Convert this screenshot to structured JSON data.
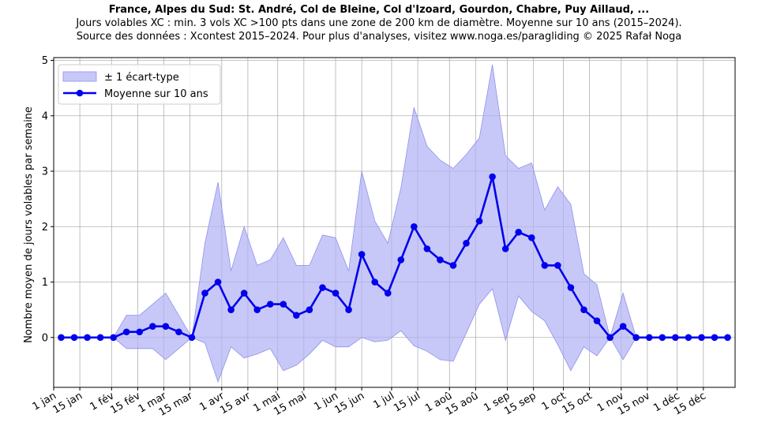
{
  "chart_data": {
    "type": "line",
    "title": "France, Alpes du Sud: St. André, Col de Bleine, Col d'Izoard, Gourdon, Chabre, Puy Aillaud, ...",
    "subtitle_lines": [
      "Jours volables XC : min. 3 vols XC >100 pts dans une zone de 200 km de diamètre. Moyenne sur 10 ans (2015–2024).",
      "Source des données : Xcontest 2015–2024. Pour plus d'analyses, visitez www.noga.es/paragliding © 2025 Rafał Noga"
    ],
    "xlabel": "",
    "ylabel": "Nombre moyen de jours volables par semaine",
    "xlim": [
      1,
      366
    ],
    "ylim": [
      -0.9,
      5.05
    ],
    "grid": true,
    "legend_position": "top-left",
    "x_ticks": [
      {
        "day": 1,
        "label": "1 jan"
      },
      {
        "day": 15,
        "label": "15 jan"
      },
      {
        "day": 32,
        "label": "1 fév"
      },
      {
        "day": 46,
        "label": "15 fév"
      },
      {
        "day": 60,
        "label": "1 mar"
      },
      {
        "day": 74,
        "label": "15 mar"
      },
      {
        "day": 91,
        "label": "1 avr"
      },
      {
        "day": 105,
        "label": "15 avr"
      },
      {
        "day": 121,
        "label": "1 mai"
      },
      {
        "day": 135,
        "label": "15 mai"
      },
      {
        "day": 152,
        "label": "1 jun"
      },
      {
        "day": 166,
        "label": "15 jun"
      },
      {
        "day": 182,
        "label": "1 jul"
      },
      {
        "day": 196,
        "label": "15 jul"
      },
      {
        "day": 213,
        "label": "1 aoû"
      },
      {
        "day": 227,
        "label": "15 aoû"
      },
      {
        "day": 244,
        "label": "1 sep"
      },
      {
        "day": 258,
        "label": "15 sep"
      },
      {
        "day": 274,
        "label": "1 oct"
      },
      {
        "day": 288,
        "label": "15 oct"
      },
      {
        "day": 305,
        "label": "1 nov"
      },
      {
        "day": 319,
        "label": "15 nov"
      },
      {
        "day": 335,
        "label": "1 déc"
      },
      {
        "day": 349,
        "label": "15 déc"
      }
    ],
    "y_ticks": [
      0,
      1,
      2,
      3,
      4,
      5
    ],
    "x": [
      5,
      12,
      19,
      26,
      33,
      40,
      47,
      54,
      61,
      68,
      75,
      82,
      89,
      96,
      103,
      110,
      117,
      124,
      131,
      138,
      145,
      152,
      159,
      166,
      173,
      180,
      187,
      194,
      201,
      208,
      215,
      222,
      229,
      236,
      243,
      250,
      257,
      264,
      271,
      278,
      285,
      292,
      299,
      306,
      313,
      320,
      327,
      334,
      341,
      348,
      355,
      362
    ],
    "series": [
      {
        "name": "Moyenne sur 10 ans",
        "color": "#0000ee",
        "values": [
          0,
          0,
          0,
          0,
          0,
          0.1,
          0.1,
          0.2,
          0.2,
          0.1,
          0,
          0.8,
          1.0,
          0.5,
          0.8,
          0.5,
          0.6,
          0.6,
          0.4,
          0.5,
          0.9,
          0.8,
          0.5,
          1.5,
          1.0,
          0.8,
          1.4,
          2.0,
          1.6,
          1.4,
          1.3,
          1.7,
          2.1,
          2.9,
          1.6,
          1.9,
          1.8,
          1.3,
          1.3,
          0.9,
          0.5,
          0.3,
          0,
          0.2,
          0,
          0,
          0,
          0,
          0,
          0,
          0,
          0
        ]
      },
      {
        "name": "± 1 écart-type",
        "color": "#b0b0f5",
        "upper": [
          0,
          0,
          0,
          0,
          0,
          0.4,
          0.4,
          0.6,
          0.8,
          0.4,
          0,
          1.7,
          2.8,
          1.2,
          2.0,
          1.3,
          1.4,
          1.8,
          1.3,
          1.3,
          1.85,
          1.8,
          1.2,
          3.0,
          2.1,
          1.7,
          2.7,
          4.15,
          3.45,
          3.2,
          3.05,
          3.3,
          3.6,
          4.92,
          3.28,
          3.05,
          3.15,
          2.3,
          2.72,
          2.4,
          1.15,
          0.95,
          0,
          0.8,
          0,
          0,
          0,
          0,
          0,
          0,
          0,
          0
        ],
        "lower": [
          0,
          0,
          0,
          0,
          0,
          -0.2,
          -0.2,
          -0.2,
          -0.4,
          -0.2,
          0,
          -0.1,
          -0.8,
          -0.17,
          -0.37,
          -0.3,
          -0.2,
          -0.6,
          -0.5,
          -0.3,
          -0.05,
          -0.17,
          -0.17,
          0,
          -0.08,
          -0.05,
          0.12,
          -0.15,
          -0.25,
          -0.4,
          -0.43,
          0.08,
          0.6,
          0.88,
          -0.05,
          0.75,
          0.47,
          0.3,
          -0.13,
          -0.6,
          -0.17,
          -0.33,
          0,
          -0.4,
          0,
          0,
          0,
          0,
          0,
          0,
          0,
          0
        ]
      }
    ]
  }
}
